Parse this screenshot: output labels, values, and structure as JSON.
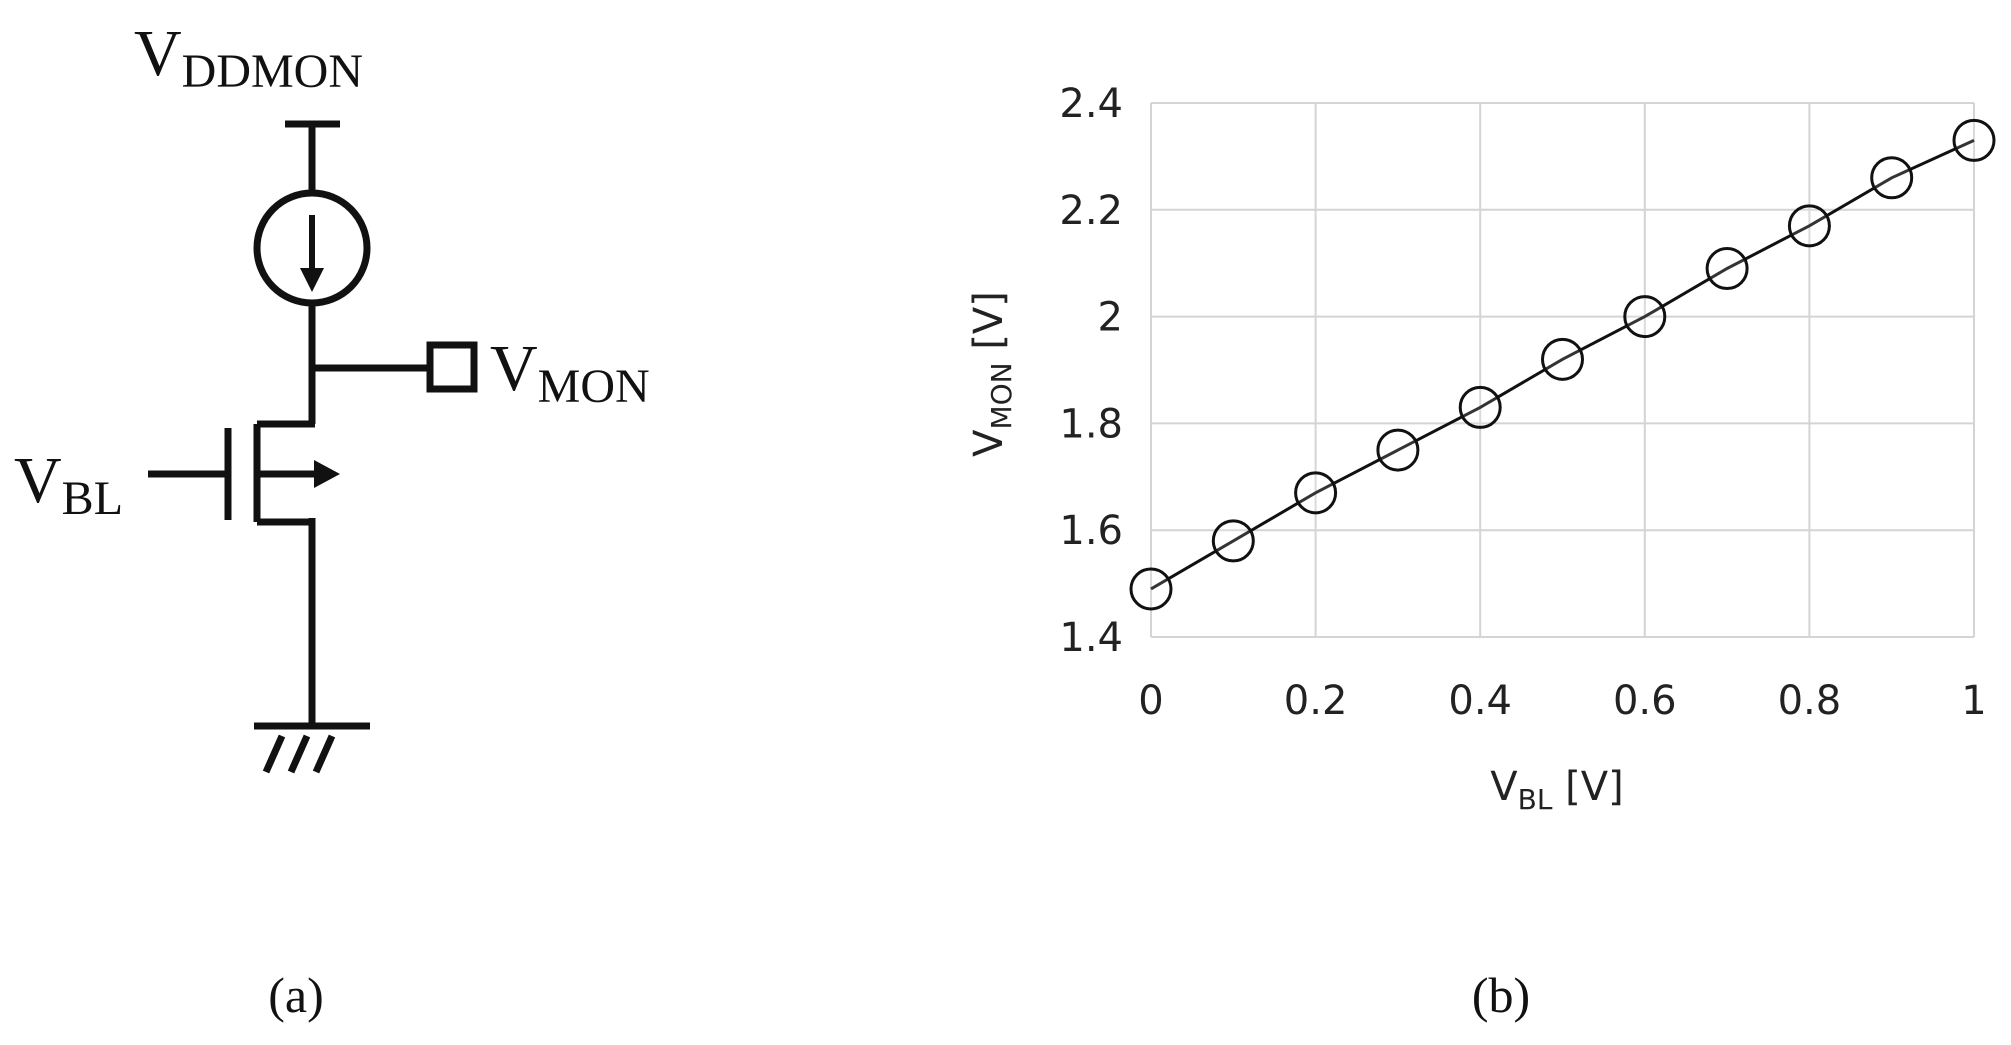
{
  "schematic": {
    "supply_label": {
      "main": "V",
      "sub": "DDMON"
    },
    "output_label": {
      "main": "V",
      "sub": "MON"
    },
    "gate_label": {
      "main": "V",
      "sub": "BL"
    },
    "caption": "(a)"
  },
  "chart_data": {
    "type": "scatter",
    "ylabel": {
      "main": "V",
      "sub": "MON",
      "unit": " [V]"
    },
    "xlabel": {
      "main": "V",
      "sub": "BL",
      "unit": " [V]"
    },
    "xlim": [
      0,
      1
    ],
    "ylim": [
      1.4,
      2.4
    ],
    "xticks": [
      "0",
      "0.2",
      "0.4",
      "0.6",
      "0.8",
      "1"
    ],
    "yticks": [
      "1.4",
      "1.6",
      "1.8",
      "2",
      "2.2",
      "2.4"
    ],
    "grid": true,
    "marker": "open-circle",
    "line": true,
    "series": [
      {
        "x": [
          0,
          0.1,
          0.2,
          0.3,
          0.4,
          0.5,
          0.6,
          0.7,
          0.8,
          0.9,
          1.0
        ],
        "y": [
          1.49,
          1.58,
          1.67,
          1.75,
          1.83,
          1.92,
          2.0,
          2.09,
          2.17,
          2.26,
          2.33
        ]
      }
    ],
    "caption": "(b)"
  }
}
